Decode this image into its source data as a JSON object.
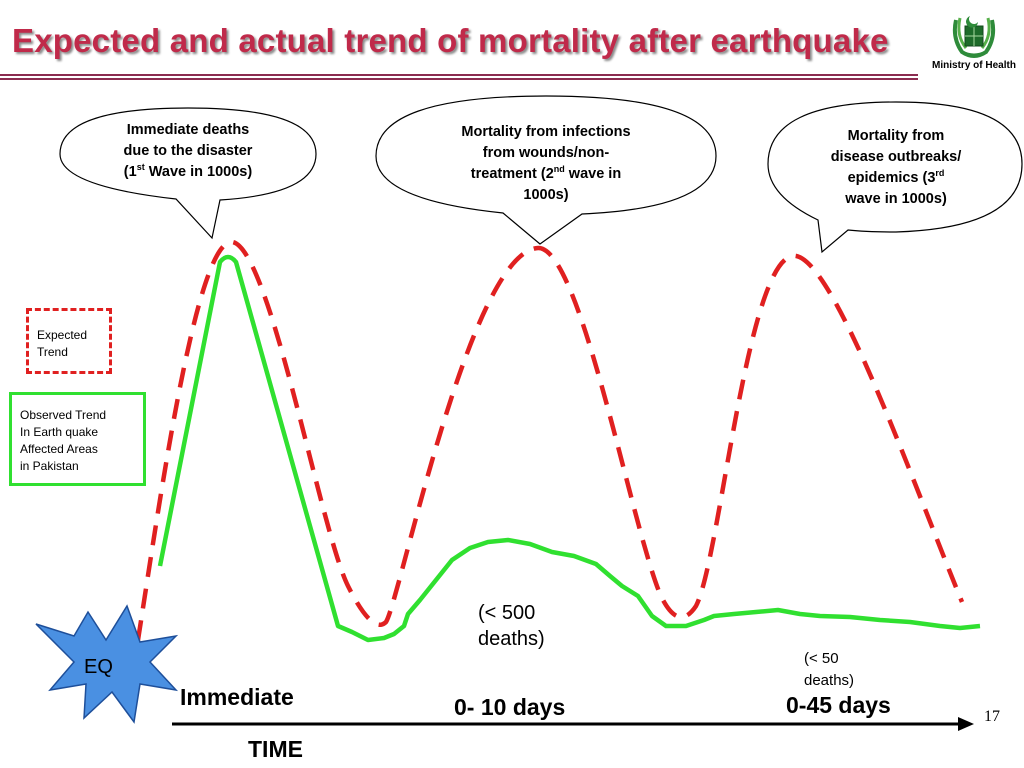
{
  "title": "Expected and actual trend of mortality after earthquake",
  "ministry": "Ministry of Health",
  "bubbles": {
    "first": {
      "line1": "Immediate deaths",
      "line2": "due to the disaster",
      "line3_a": "(1",
      "line3_sup": "st",
      "line3_b": " Wave in 1000s)"
    },
    "second": {
      "line1": "Mortality from infections",
      "line2": "from wounds/non-",
      "line3_a": "treatment (2",
      "line3_sup": "nd",
      "line3_b": " wave in",
      "line4": "1000s)"
    },
    "third": {
      "line1": "Mortality from",
      "line2": "disease outbreaks/",
      "line3_a": "epidemics (3",
      "line3_sup": "rd",
      "line4": "wave in 1000s)"
    }
  },
  "legend": {
    "expected": [
      "Expected",
      "Trend"
    ],
    "observed": [
      "Observed Trend",
      "In Earth quake",
      "Affected Areas",
      "in Pakistan"
    ]
  },
  "eq_label": "EQ",
  "notes": {
    "wave2": [
      "(< 500",
      "deaths)"
    ],
    "wave3": [
      "(< 50",
      "deaths)"
    ]
  },
  "timeline": {
    "immediate": "Immediate",
    "days10": "0- 10 days",
    "days45": "0-45 days",
    "axis_label": "TIME"
  },
  "page_number": "17",
  "colors": {
    "title": "#c02a4a",
    "expected": "#e02020",
    "observed": "#30e030",
    "eq_fill": "#4a90e2"
  }
}
